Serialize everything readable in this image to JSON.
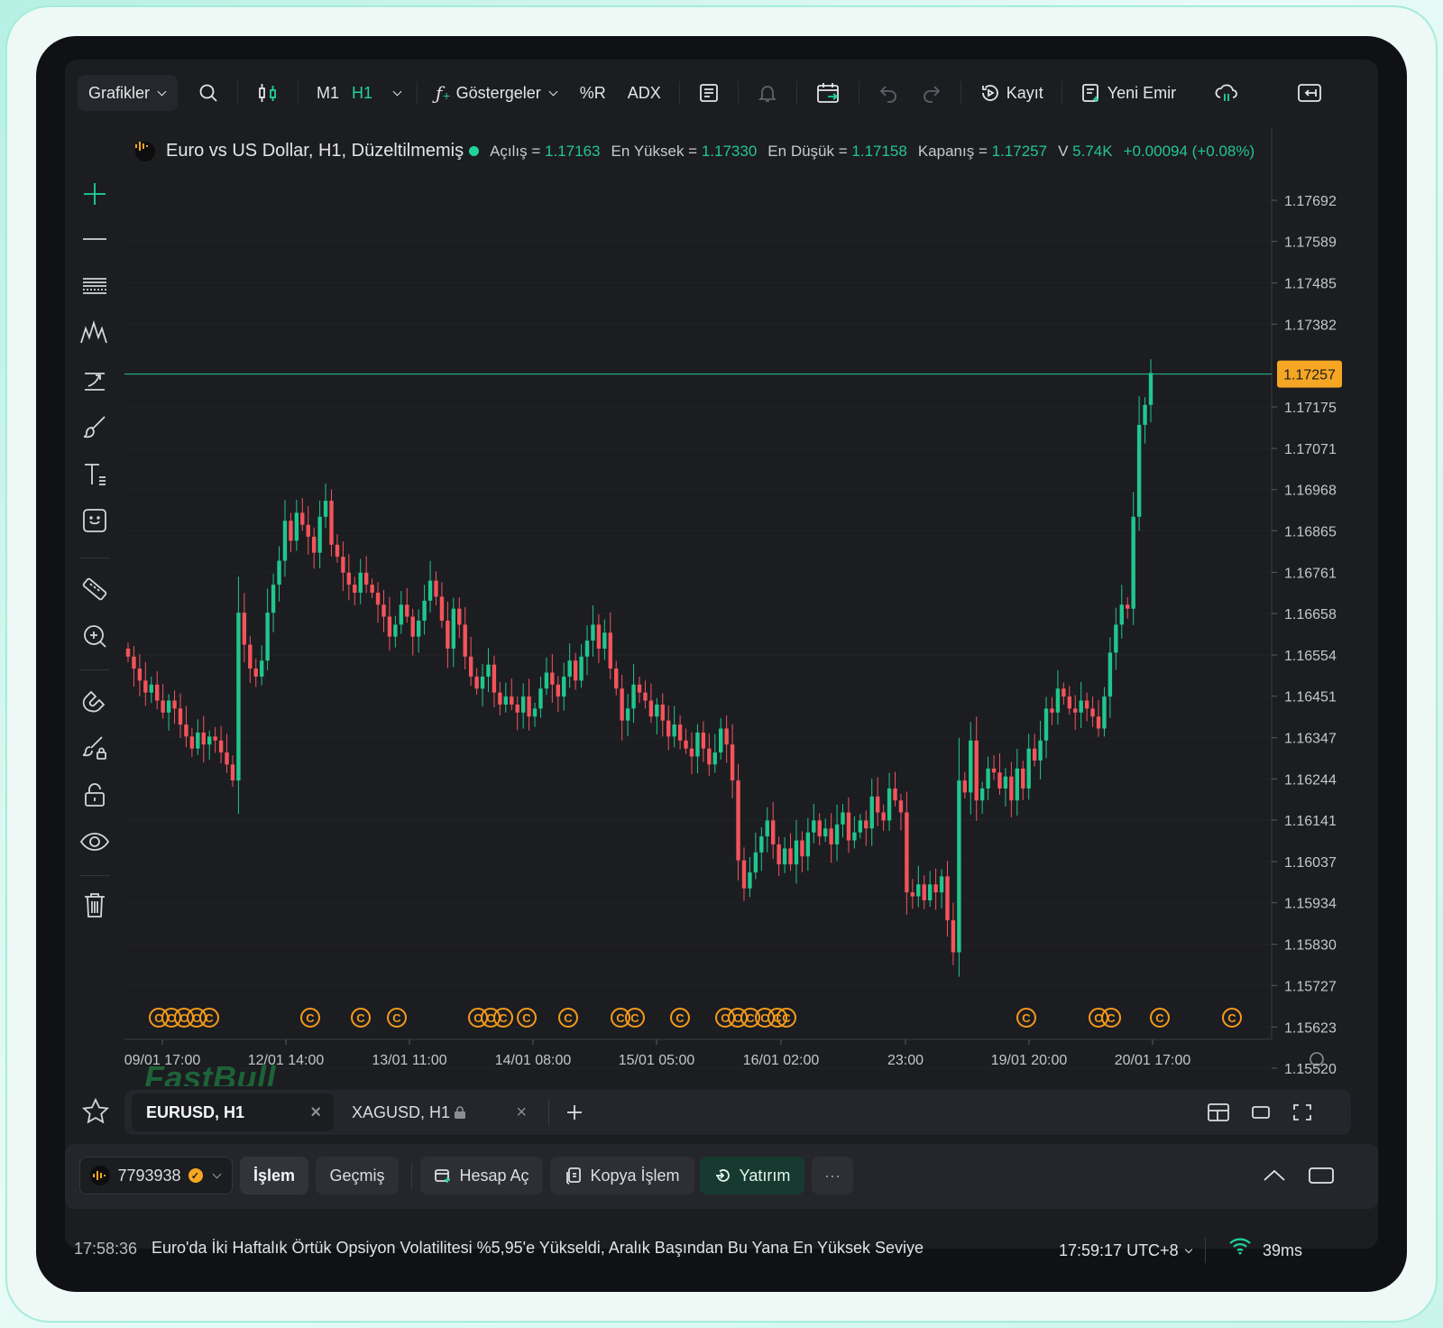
{
  "toolbar": {
    "charts_label": "Grafikler",
    "tf_m1": "M1",
    "tf_h1": "H1",
    "indicators_label": "Göstergeler",
    "ind_r": "%R",
    "ind_adx": "ADX",
    "record_label": "Kayıt",
    "new_order_label": "Yeni Emir"
  },
  "legend": {
    "symbol": "Euro vs US Dollar, H1, Düzeltilmemiş",
    "open_label": "Açılış =",
    "open": "1.17163",
    "high_label": "En Yüksek =",
    "high": "1.17330",
    "low_label": "En Düşük =",
    "low": "1.17158",
    "close_label": "Kapanış =",
    "close": "1.17257",
    "vol_label": "V",
    "vol": "5.74K",
    "change": "+0.00094 (+0.08%)"
  },
  "watermark": "FastBull",
  "colors": {
    "up": "#21c68c",
    "down": "#f2545b",
    "price_tag": "#f5a623",
    "event": "#f59a1b",
    "bg": "#1c1d21"
  },
  "chart_data": {
    "type": "candlestick",
    "symbol": "EURUSD",
    "timeframe": "H1",
    "ylim": [
      1.1545,
      1.1775
    ],
    "y_ticks": [
      "1.17692",
      "1.17589",
      "1.17485",
      "1.17382",
      "1.17175",
      "1.17071",
      "1.16968",
      "1.16865",
      "1.16761",
      "1.16658",
      "1.16554",
      "1.16451",
      "1.16347",
      "1.16244",
      "1.16141",
      "1.16037",
      "1.15934",
      "1.15830",
      "1.15727",
      "1.15623",
      "1.15520"
    ],
    "x_ticks": [
      "09/01 17:00",
      "12/01 14:00",
      "13/01 11:00",
      "14/01 08:00",
      "15/01 05:00",
      "16/01 02:00",
      "23:00",
      "19/01 20:00",
      "20/01 17:00"
    ],
    "last_price": "1.17257",
    "last_price_value": 1.17257,
    "closes": [
      1.1655,
      1.1652,
      1.1649,
      1.1646,
      1.1648,
      1.1644,
      1.1641,
      1.1644,
      1.1642,
      1.1638,
      1.1635,
      1.1632,
      1.1636,
      1.1633,
      1.1635,
      1.1634,
      1.1631,
      1.1628,
      1.1624,
      1.1666,
      1.1658,
      1.1652,
      1.165,
      1.1654,
      1.1666,
      1.1673,
      1.1679,
      1.1689,
      1.1684,
      1.1691,
      1.1688,
      1.1685,
      1.1681,
      1.169,
      1.1694,
      1.1683,
      1.168,
      1.1676,
      1.1673,
      1.1671,
      1.1676,
      1.1673,
      1.1671,
      1.1668,
      1.1665,
      1.166,
      1.1663,
      1.1668,
      1.1665,
      1.166,
      1.1664,
      1.1669,
      1.1674,
      1.167,
      1.1664,
      1.1657,
      1.1667,
      1.1663,
      1.1655,
      1.165,
      1.1647,
      1.165,
      1.1653,
      1.1646,
      1.1643,
      1.1645,
      1.1643,
      1.1641,
      1.1645,
      1.164,
      1.1642,
      1.1647,
      1.1651,
      1.1648,
      1.1645,
      1.165,
      1.1654,
      1.1649,
      1.1655,
      1.1659,
      1.1663,
      1.1657,
      1.1661,
      1.1652,
      1.1647,
      1.1639,
      1.1642,
      1.1648,
      1.1646,
      1.1644,
      1.164,
      1.1643,
      1.1639,
      1.1635,
      1.1638,
      1.1634,
      1.1632,
      1.163,
      1.1636,
      1.1632,
      1.1628,
      1.1631,
      1.1637,
      1.1633,
      1.1624,
      1.1604,
      1.1597,
      1.1601,
      1.1606,
      1.161,
      1.1614,
      1.1608,
      1.1603,
      1.1607,
      1.1603,
      1.1609,
      1.1605,
      1.1611,
      1.1614,
      1.161,
      1.1612,
      1.1608,
      1.1613,
      1.1616,
      1.1609,
      1.1611,
      1.1614,
      1.1612,
      1.162,
      1.1616,
      1.1614,
      1.1622,
      1.1619,
      1.1616,
      1.1596,
      1.1595,
      1.1598,
      1.1594,
      1.1598,
      1.1596,
      1.16,
      1.1589,
      1.1581,
      1.1624,
      1.1621,
      1.1634,
      1.1619,
      1.1622,
      1.1627,
      1.1626,
      1.1622,
      1.1625,
      1.1619,
      1.1627,
      1.1622,
      1.1632,
      1.1629,
      1.1634,
      1.1642,
      1.1641,
      1.1647,
      1.1645,
      1.1642,
      1.1641,
      1.1644,
      1.1642,
      1.164,
      1.1637,
      1.1645,
      1.1656,
      1.1663,
      1.1668,
      1.1667,
      1.169,
      1.1713,
      1.1718,
      1.1726
    ],
    "event_markers": 27
  },
  "tabs": {
    "tab1": "EURUSD, H1",
    "tab2": "XAGUSD, H1"
  },
  "trade": {
    "account": "7793938",
    "btn_trade": "İşlem",
    "btn_history": "Geçmiş",
    "btn_open_account": "Hesap Aç",
    "btn_copy": "Kopya İşlem",
    "btn_invest": "Yatırım"
  },
  "ticker": {
    "time": "17:58:36",
    "headline": "Euro'da İki Haftalık Örtük Opsiyon Volatilitesi %5,95'e Yükseldi, Aralık Başından Bu Yana En Yüksek Seviye",
    "clock": "17:59:17 UTC+8",
    "latency": "39ms"
  }
}
